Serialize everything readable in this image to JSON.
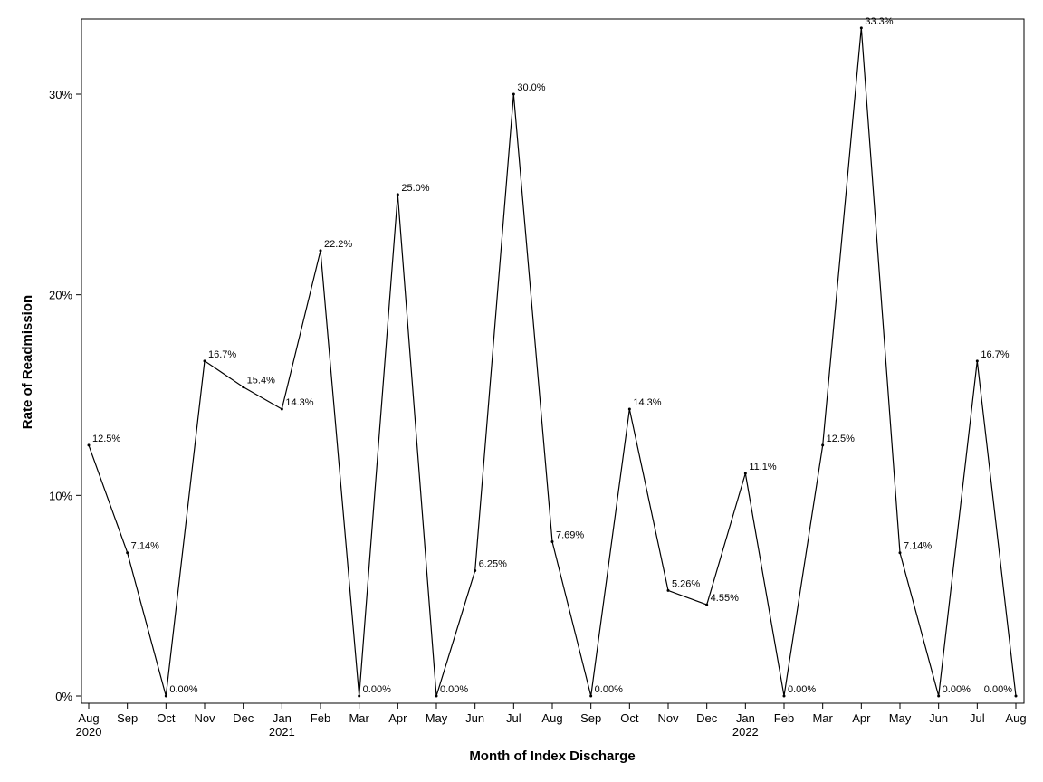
{
  "chart_data": {
    "type": "line",
    "title": "",
    "xlabel": "Month of Index Discharge",
    "ylabel": "Rate of Readmission",
    "ylim": [
      0,
      0.34
    ],
    "y_ticks": [
      0,
      0.1,
      0.2,
      0.3
    ],
    "y_tick_labels": [
      "0%",
      "10%",
      "20%",
      "30%"
    ],
    "grid": false,
    "legend": "none",
    "line_color": "#000000",
    "x": [
      "2020-08",
      "2020-09",
      "2020-10",
      "2020-11",
      "2020-12",
      "2021-01",
      "2021-02",
      "2021-03",
      "2021-04",
      "2021-05",
      "2021-06",
      "2021-07",
      "2021-08",
      "2021-09",
      "2021-10",
      "2021-11",
      "2021-12",
      "2022-01",
      "2022-02",
      "2022-03",
      "2022-04",
      "2022-05",
      "2022-06",
      "2022-07",
      "2022-08"
    ],
    "x_tick_labels": [
      "Aug",
      "Sep",
      "Oct",
      "Nov",
      "Dec",
      "Jan",
      "Feb",
      "Mar",
      "Apr",
      "May",
      "Jun",
      "Jul",
      "Aug",
      "Sep",
      "Oct",
      "Nov",
      "Dec",
      "Jan",
      "Feb",
      "Mar",
      "Apr",
      "May",
      "Jun",
      "Jul",
      "Aug"
    ],
    "x_year_labels": [
      {
        "month": "2020-08",
        "label": "2020"
      },
      {
        "month": "2021-01",
        "label": "2021"
      },
      {
        "month": "2022-01",
        "label": "2022"
      }
    ],
    "values": [
      0.125,
      0.0714,
      0,
      0.167,
      0.154,
      0.143,
      0.222,
      0,
      0.25,
      0,
      0.0625,
      0.3,
      0.0769,
      0,
      0.143,
      0.0526,
      0.0455,
      0.111,
      0,
      0.125,
      0.333,
      0.0714,
      0,
      0.167,
      0
    ],
    "data_labels": [
      "12.5%",
      "7.14%",
      "0.00%",
      "16.7%",
      "15.4%",
      "14.3%",
      "22.2%",
      "0.00%",
      "25.0%",
      "0.00%",
      "6.25%",
      "30.0%",
      "7.69%",
      "0.00%",
      "14.3%",
      "5.26%",
      "4.55%",
      "11.1%",
      "0.00%",
      "12.5%",
      "33.3%",
      "7.14%",
      "0.00%",
      "16.7%",
      "0.00%"
    ]
  }
}
